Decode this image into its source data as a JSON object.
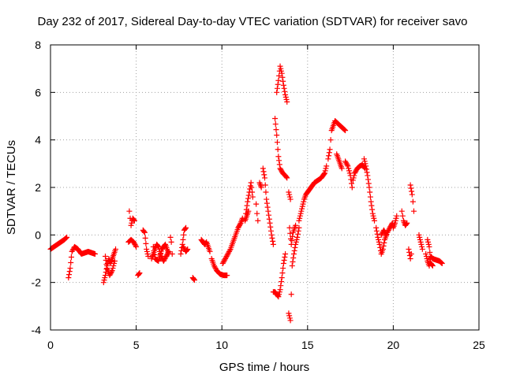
{
  "chart_data": {
    "type": "scatter",
    "title": "Day 232 of 2017, Sidereal Day-to-day VTEC variation (SDTVAR) for receiver savo",
    "xlabel": "GPS time / hours",
    "ylabel": "SDTVAR / TECUs",
    "xlim": [
      0,
      25
    ],
    "ylim": [
      -4,
      8
    ],
    "xticks": [
      0,
      5,
      10,
      15,
      20,
      25
    ],
    "yticks": [
      -4,
      -2,
      0,
      2,
      4,
      6,
      8
    ],
    "xtick_labels": [
      "0",
      "5",
      "10",
      "15",
      "20",
      "25"
    ],
    "ytick_labels": [
      "-4",
      "-2",
      "0",
      "2",
      "4",
      "6",
      "8"
    ],
    "grid": true,
    "marker": "+",
    "series": [
      {
        "name": "SDTVAR",
        "color": "#ff0000",
        "segments": [
          [
            [
              0.0,
              -0.6
            ],
            [
              0.2,
              -0.5
            ],
            [
              0.4,
              -0.4
            ],
            [
              0.6,
              -0.3
            ],
            [
              0.8,
              -0.2
            ],
            [
              0.95,
              -0.1
            ]
          ],
          [
            [
              1.05,
              -1.8
            ],
            [
              1.15,
              -1.4
            ],
            [
              1.25,
              -0.7
            ],
            [
              1.4,
              -0.5
            ],
            [
              1.6,
              -0.6
            ],
            [
              1.8,
              -0.8
            ],
            [
              2.0,
              -0.75
            ],
            [
              2.2,
              -0.7
            ],
            [
              2.4,
              -0.75
            ],
            [
              2.6,
              -0.8
            ]
          ],
          [
            [
              3.1,
              -2.0
            ],
            [
              3.2,
              -1.7
            ],
            [
              3.3,
              -1.3
            ],
            [
              3.4,
              -1.0
            ],
            [
              3.5,
              -1.2
            ],
            [
              3.6,
              -1.0
            ],
            [
              3.7,
              -0.8
            ],
            [
              3.8,
              -0.6
            ]
          ],
          [
            [
              3.2,
              -0.9
            ],
            [
              3.3,
              -1.4
            ],
            [
              3.45,
              -1.7
            ],
            [
              3.6,
              -1.5
            ],
            [
              3.75,
              -1.1
            ]
          ],
          [
            [
              4.6,
              1.0
            ],
            [
              4.65,
              0.7
            ],
            [
              4.7,
              0.4
            ],
            [
              4.8,
              0.7
            ],
            [
              4.9,
              0.6
            ]
          ],
          [
            [
              4.55,
              -0.3
            ],
            [
              4.7,
              -0.2
            ],
            [
              4.85,
              -0.3
            ],
            [
              5.0,
              -0.5
            ]
          ],
          [
            [
              5.1,
              -1.7
            ],
            [
              5.2,
              -1.6
            ]
          ],
          [
            [
              5.4,
              0.2
            ],
            [
              5.5,
              0.1
            ],
            [
              5.6,
              -0.6
            ],
            [
              5.7,
              -0.9
            ]
          ],
          [
            [
              5.9,
              -1.0
            ],
            [
              6.0,
              -0.8
            ],
            [
              6.1,
              -0.6
            ],
            [
              6.2,
              -0.4
            ],
            [
              6.3,
              -0.5
            ],
            [
              6.45,
              -0.9
            ],
            [
              6.6,
              -1.1
            ],
            [
              6.75,
              -0.9
            ],
            [
              6.9,
              -0.7
            ]
          ],
          [
            [
              6.0,
              -0.5
            ],
            [
              6.1,
              -1.0
            ],
            [
              6.3,
              -1.1
            ],
            [
              6.5,
              -0.6
            ],
            [
              6.7,
              -0.4
            ],
            [
              6.9,
              -0.8
            ]
          ],
          [
            [
              7.0,
              -0.1
            ],
            [
              7.05,
              -0.3
            ],
            [
              7.1,
              -0.8
            ]
          ],
          [
            [
              7.6,
              -0.8
            ],
            [
              7.7,
              -0.4
            ],
            [
              7.8,
              0.2
            ],
            [
              7.9,
              0.3
            ]
          ],
          [
            [
              7.75,
              -0.5
            ],
            [
              7.9,
              -0.7
            ],
            [
              8.0,
              -0.6
            ]
          ],
          [
            [
              8.3,
              -1.8
            ],
            [
              8.4,
              -1.9
            ]
          ],
          [
            [
              8.8,
              -0.2
            ],
            [
              8.9,
              -0.3
            ],
            [
              9.0,
              -0.4
            ],
            [
              9.1,
              -0.3
            ],
            [
              9.2,
              -0.5
            ],
            [
              9.3,
              -0.7
            ]
          ],
          [
            [
              9.4,
              -1.0
            ],
            [
              9.55,
              -1.3
            ],
            [
              9.7,
              -1.5
            ],
            [
              9.9,
              -1.65
            ],
            [
              10.1,
              -1.7
            ],
            [
              10.3,
              -1.7
            ]
          ],
          [
            [
              10.05,
              -1.2
            ],
            [
              10.2,
              -1.0
            ],
            [
              10.35,
              -0.8
            ],
            [
              10.5,
              -0.6
            ],
            [
              10.65,
              -0.3
            ],
            [
              10.8,
              0.0
            ],
            [
              10.95,
              0.3
            ],
            [
              11.1,
              0.5
            ],
            [
              11.2,
              0.7
            ]
          ],
          [
            [
              11.4,
              0.9
            ],
            [
              11.5,
              1.4
            ],
            [
              11.6,
              1.8
            ],
            [
              11.7,
              2.2
            ],
            [
              11.8,
              1.6
            ]
          ],
          [
            [
              11.35,
              0.6
            ],
            [
              11.45,
              0.8
            ],
            [
              11.55,
              1.0
            ]
          ],
          [
            [
              12.0,
              1.3
            ],
            [
              12.05,
              0.9
            ],
            [
              12.1,
              0.6
            ]
          ],
          [
            [
              12.4,
              2.8
            ],
            [
              12.5,
              2.4
            ],
            [
              12.6,
              1.5
            ],
            [
              12.7,
              1.0
            ],
            [
              12.8,
              0.5
            ],
            [
              12.9,
              0.0
            ],
            [
              13.0,
              -0.4
            ]
          ],
          [
            [
              12.2,
              2.2
            ],
            [
              12.3,
              2.0
            ]
          ],
          [
            [
              13.1,
              4.9
            ],
            [
              13.2,
              4.2
            ],
            [
              13.3,
              3.3
            ],
            [
              13.4,
              2.8
            ],
            [
              13.55,
              2.6
            ],
            [
              13.7,
              2.5
            ],
            [
              13.8,
              2.4
            ]
          ],
          [
            [
              13.2,
              6.0
            ],
            [
              13.3,
              6.5
            ],
            [
              13.4,
              7.1
            ],
            [
              13.5,
              6.8
            ],
            [
              13.6,
              6.3
            ],
            [
              13.7,
              5.9
            ],
            [
              13.8,
              5.6
            ]
          ],
          [
            [
              13.0,
              -2.4
            ],
            [
              13.1,
              -2.4
            ],
            [
              13.2,
              -2.5
            ],
            [
              13.3,
              -2.6
            ],
            [
              13.4,
              -2.3
            ],
            [
              13.5,
              -1.8
            ],
            [
              13.6,
              -1.2
            ],
            [
              13.7,
              -0.8
            ]
          ],
          [
            [
              13.9,
              -3.3
            ],
            [
              14.0,
              -3.6
            ],
            [
              14.05,
              -2.5
            ],
            [
              14.1,
              -1.3
            ],
            [
              14.2,
              -0.8
            ],
            [
              14.3,
              -0.4
            ],
            [
              14.4,
              -0.1
            ],
            [
              14.5,
              0.3
            ]
          ],
          [
            [
              13.95,
              0.3
            ],
            [
              14.05,
              -0.4
            ],
            [
              14.15,
              0.1
            ],
            [
              14.3,
              0.4
            ]
          ],
          [
            [
              13.9,
              1.8
            ],
            [
              14.0,
              1.5
            ]
          ],
          [
            [
              14.5,
              0.6
            ],
            [
              14.6,
              0.9
            ],
            [
              14.7,
              1.2
            ],
            [
              14.8,
              1.5
            ],
            [
              14.9,
              1.7
            ],
            [
              15.0,
              1.8
            ],
            [
              15.2,
              2.0
            ],
            [
              15.4,
              2.2
            ],
            [
              15.6,
              2.3
            ],
            [
              15.8,
              2.4
            ],
            [
              16.0,
              2.6
            ],
            [
              16.1,
              2.9
            ]
          ],
          [
            [
              16.2,
              3.2
            ],
            [
              16.3,
              3.6
            ],
            [
              16.35,
              4.0
            ],
            [
              16.4,
              4.4
            ],
            [
              16.5,
              4.6
            ],
            [
              16.6,
              4.8
            ],
            [
              16.75,
              4.7
            ],
            [
              16.9,
              4.6
            ],
            [
              17.05,
              4.5
            ],
            [
              17.2,
              4.4
            ]
          ],
          [
            [
              16.7,
              3.4
            ],
            [
              16.8,
              3.2
            ],
            [
              16.9,
              3.0
            ],
            [
              17.0,
              2.8
            ]
          ],
          [
            [
              17.2,
              3.1
            ],
            [
              17.35,
              2.9
            ],
            [
              17.5,
              2.5
            ],
            [
              17.6,
              2.0
            ]
          ],
          [
            [
              17.65,
              2.3
            ],
            [
              17.75,
              2.6
            ],
            [
              17.9,
              2.8
            ],
            [
              18.05,
              2.9
            ],
            [
              18.2,
              2.95
            ],
            [
              18.35,
              2.8
            ]
          ],
          [
            [
              18.3,
              3.2
            ],
            [
              18.4,
              2.9
            ],
            [
              18.5,
              2.5
            ],
            [
              18.6,
              2.0
            ],
            [
              18.7,
              1.4
            ],
            [
              18.8,
              0.9
            ],
            [
              18.9,
              0.6
            ]
          ],
          [
            [
              19.0,
              0.3
            ],
            [
              19.1,
              -0.1
            ],
            [
              19.2,
              -0.4
            ],
            [
              19.3,
              -0.8
            ],
            [
              19.4,
              -0.6
            ],
            [
              19.5,
              -0.2
            ],
            [
              19.65,
              0.1
            ],
            [
              19.8,
              0.3
            ],
            [
              19.95,
              0.5
            ]
          ],
          [
            [
              19.3,
              0.0
            ],
            [
              19.45,
              0.2
            ],
            [
              19.6,
              0.0
            ]
          ],
          [
            [
              20.0,
              0.3
            ],
            [
              20.1,
              0.5
            ],
            [
              20.2,
              0.8
            ]
          ],
          [
            [
              20.5,
              1.0
            ],
            [
              20.55,
              0.8
            ],
            [
              20.6,
              0.6
            ],
            [
              20.7,
              0.4
            ],
            [
              20.8,
              0.5
            ]
          ],
          [
            [
              20.9,
              -0.6
            ],
            [
              21.0,
              -1.0
            ],
            [
              21.05,
              -0.8
            ]
          ],
          [
            [
              21.0,
              2.1
            ],
            [
              21.1,
              1.7
            ],
            [
              21.15,
              1.4
            ],
            [
              21.2,
              1.0
            ]
          ],
          [
            [
              21.5,
              0.0
            ],
            [
              21.6,
              -0.3
            ],
            [
              21.7,
              -0.6
            ]
          ],
          [
            [
              21.9,
              -0.8
            ],
            [
              22.0,
              -1.1
            ],
            [
              22.1,
              -1.3
            ],
            [
              22.2,
              -0.9
            ],
            [
              22.3,
              -1.0
            ],
            [
              22.5,
              -1.05
            ],
            [
              22.7,
              -1.1
            ],
            [
              22.85,
              -1.2
            ]
          ],
          [
            [
              22.0,
              -0.2
            ],
            [
              22.1,
              -0.5
            ],
            [
              22.2,
              -1.2
            ],
            [
              22.3,
              -1.3
            ]
          ]
        ]
      }
    ]
  }
}
